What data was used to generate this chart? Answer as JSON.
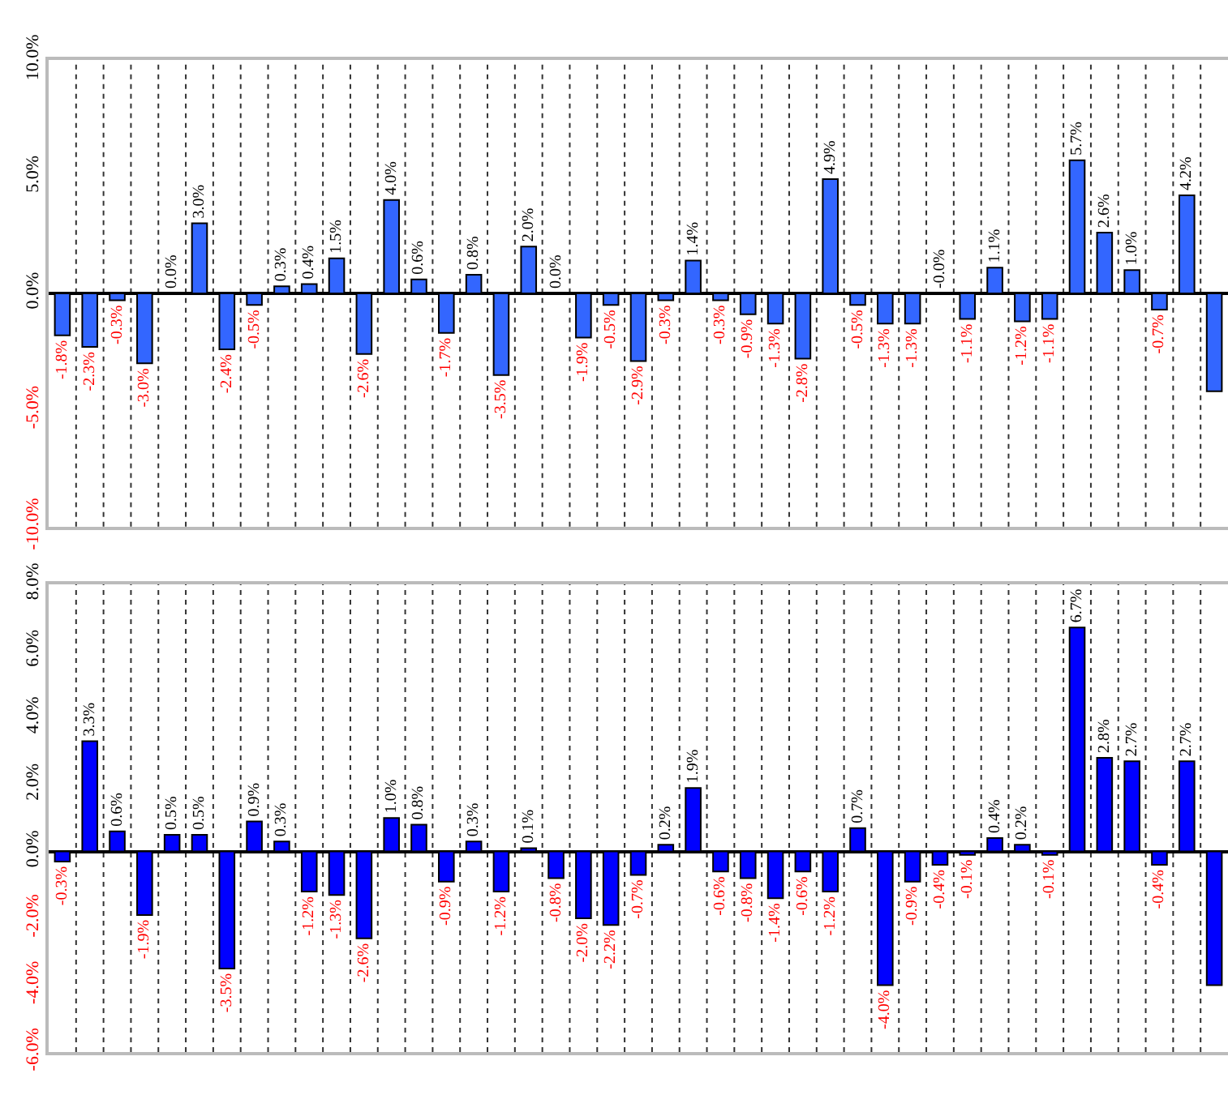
{
  "chart_data": [
    {
      "type": "bar",
      "categories": [
        null,
        null,
        null,
        null,
        null,
        null,
        null,
        null,
        null,
        null,
        null,
        null,
        null,
        null,
        null,
        null,
        null,
        null,
        null,
        null,
        null,
        null,
        null,
        null,
        null,
        null,
        null,
        null,
        null,
        null,
        null,
        null,
        null,
        null,
        null,
        null,
        null,
        null,
        null,
        null,
        null,
        null,
        null
      ],
      "series": [
        {
          "color": "#3366ff",
          "values": [
            -1.8,
            -2.3,
            -0.3,
            -3.0,
            0.0,
            3.0,
            -2.4,
            -0.5,
            0.3,
            0.4,
            1.5,
            -2.6,
            4.0,
            0.6,
            -1.7,
            0.8,
            -3.5,
            2.0,
            0.0,
            -1.9,
            -0.5,
            -2.9,
            -0.3,
            1.4,
            -0.3,
            -0.9,
            -1.3,
            -2.8,
            4.9,
            -0.5,
            -1.3,
            -1.3,
            0.0,
            -1.1,
            1.1,
            -1.2,
            -1.1,
            5.7,
            2.6,
            1.0,
            -0.7,
            4.2,
            -4.2
          ],
          "value_labels": [
            "-1.8%",
            "-2.3%",
            "-0.3%",
            "-3.0%",
            "0.0%",
            "3.0%",
            "-2.4%",
            "-0.5%",
            "0.3%",
            "0.4%",
            "1.5%",
            "-2.6%",
            "4.0%",
            "0.6%",
            "-1.7%",
            "0.8%",
            "-3.5%",
            "2.0%",
            "0.0%",
            "-1.9%",
            "-0.5%",
            "-2.9%",
            "-0.3%",
            "1.4%",
            "-0.3%",
            "-0.9%",
            "-1.3%",
            "-2.8%",
            "4.9%",
            "-0.5%",
            "-1.3%",
            "-1.3%",
            "-0.0%",
            "-1.1%",
            "1.1%",
            "-1.2%",
            "-1.1%",
            "5.7%",
            "2.6%",
            "1.0%",
            "-0.7%",
            "4.2%",
            null
          ]
        }
      ],
      "ylim": [
        -10,
        10
      ],
      "yticks": [
        {
          "value": -10,
          "label": "-10.0%"
        },
        {
          "value": -5,
          "label": "-5.0%"
        },
        {
          "value": 0,
          "label": "0.0%"
        },
        {
          "value": 5,
          "label": "5.0%"
        },
        {
          "value": 10,
          "label": "10.0%"
        }
      ],
      "grid": "x",
      "tick_labels": "y"
    },
    {
      "type": "bar",
      "categories": [
        null,
        null,
        null,
        null,
        null,
        null,
        null,
        null,
        null,
        null,
        null,
        null,
        null,
        null,
        null,
        null,
        null,
        null,
        null,
        null,
        null,
        null,
        null,
        null,
        null,
        null,
        null,
        null,
        null,
        null,
        null,
        null,
        null,
        null,
        null,
        null,
        null,
        null,
        null,
        null,
        null,
        null,
        null
      ],
      "series": [
        {
          "color": "#0000ff",
          "values": [
            -0.3,
            3.3,
            0.6,
            -1.9,
            0.5,
            0.5,
            -3.5,
            0.9,
            0.3,
            -1.2,
            -1.3,
            -2.6,
            1.0,
            0.8,
            -0.9,
            0.3,
            -1.2,
            0.1,
            -0.8,
            -2.0,
            -2.2,
            -0.7,
            0.2,
            1.9,
            -0.6,
            -0.8,
            -1.4,
            -0.6,
            -1.2,
            0.7,
            -4.0,
            -0.9,
            -0.4,
            -0.1,
            0.4,
            0.2,
            -0.1,
            6.7,
            2.8,
            2.7,
            -0.4,
            2.7,
            -4.0
          ],
          "value_labels": [
            "-0.3%",
            "3.3%",
            "0.6%",
            "-1.9%",
            "0.5%",
            "0.5%",
            "-3.5%",
            "0.9%",
            "0.3%",
            "-1.2%",
            "-1.3%",
            "-2.6%",
            "1.0%",
            "0.8%",
            "-0.9%",
            "0.3%",
            "-1.2%",
            "0.1%",
            "-0.8%",
            "-2.0%",
            "-2.2%",
            "-0.7%",
            "0.2%",
            "1.9%",
            "-0.6%",
            "-0.8%",
            "-1.4%",
            "-0.6%",
            "-1.2%",
            "0.7%",
            "-4.0%",
            "-0.9%",
            "-0.4%",
            "-0.1%",
            "0.4%",
            "0.2%",
            "-0.1%",
            "6.7%",
            "2.8%",
            "2.7%",
            "-0.4%",
            "2.7%",
            null
          ]
        }
      ],
      "ylim": [
        -6,
        8
      ],
      "yticks": [
        {
          "value": -6,
          "label": "-6.0%"
        },
        {
          "value": -4,
          "label": "-4.0%"
        },
        {
          "value": -2,
          "label": "-2.0%"
        },
        {
          "value": 0,
          "label": "0.0%"
        },
        {
          "value": 2,
          "label": "2.0%"
        },
        {
          "value": 4,
          "label": "4.0%"
        },
        {
          "value": 6,
          "label": "6.0%"
        },
        {
          "value": 8,
          "label": "8.0%"
        }
      ],
      "grid": "x",
      "tick_labels": "y"
    }
  ]
}
